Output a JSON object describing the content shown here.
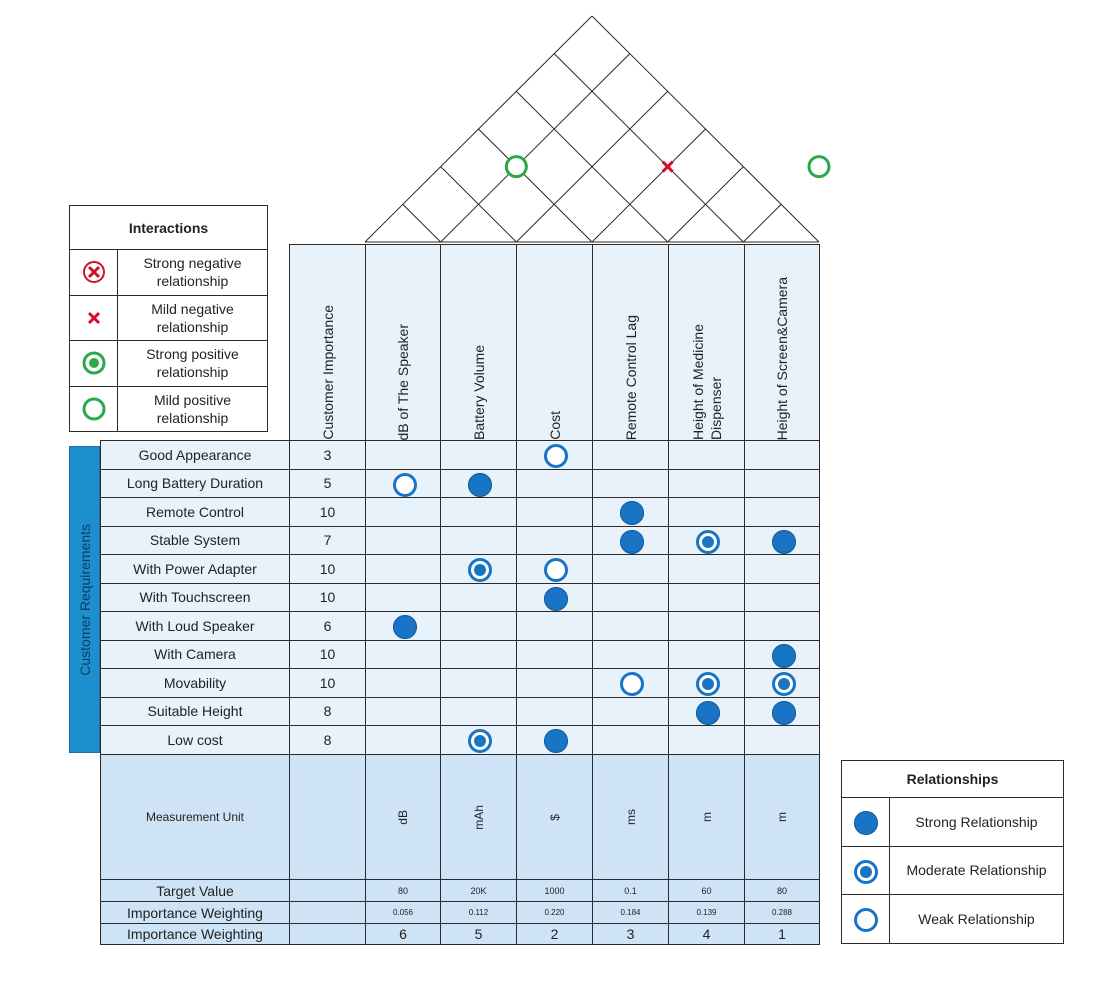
{
  "headers": {
    "customer_importance": "Customer Importance",
    "columns": [
      "dB of The Speaker",
      "Battery Volume",
      "Cost",
      "Remote Control Lag",
      "Height of Medicine\nDispenser",
      "Height of Screen&Camera"
    ]
  },
  "side_label": "Customer Requirements",
  "requirements": [
    {
      "name": "Good Appearance",
      "importance": "3",
      "rel": [
        "",
        "",
        "weak",
        "",
        "",
        ""
      ]
    },
    {
      "name": "Long Battery Duration",
      "importance": "5",
      "rel": [
        "weak",
        "strong",
        "",
        "",
        "",
        ""
      ]
    },
    {
      "name": "Remote Control",
      "importance": "10",
      "rel": [
        "",
        "",
        "",
        "strong",
        "",
        ""
      ]
    },
    {
      "name": "Stable System",
      "importance": "7",
      "rel": [
        "",
        "",
        "",
        "strong",
        "moderate",
        "strong"
      ]
    },
    {
      "name": "With Power Adapter",
      "importance": "10",
      "rel": [
        "",
        "moderate",
        "weak",
        "",
        "",
        ""
      ]
    },
    {
      "name": "With Touchscreen",
      "importance": "10",
      "rel": [
        "",
        "",
        "strong",
        "",
        "",
        ""
      ]
    },
    {
      "name": "With Loud Speaker",
      "importance": "6",
      "rel": [
        "strong",
        "",
        "",
        "",
        "",
        ""
      ]
    },
    {
      "name": "With Camera",
      "importance": "10",
      "rel": [
        "",
        "",
        "",
        "",
        "",
        "strong"
      ]
    },
    {
      "name": "Movability",
      "importance": "10",
      "rel": [
        "",
        "",
        "",
        "weak",
        "moderate",
        "moderate"
      ]
    },
    {
      "name": "Suitable Height",
      "importance": "8",
      "rel": [
        "",
        "",
        "",
        "",
        "strong",
        "strong"
      ]
    },
    {
      "name": "Low cost",
      "importance": "8",
      "rel": [
        "",
        "moderate",
        "strong",
        "",
        "",
        ""
      ]
    }
  ],
  "measurement": {
    "label": "Measurement Unit",
    "units": [
      "dB",
      "mAh",
      "$",
      "ms",
      "m",
      "m"
    ]
  },
  "target": {
    "label": "Target Value",
    "values": [
      "80",
      "20K",
      "1000",
      "0.1",
      "60",
      "80"
    ]
  },
  "weighting": {
    "label": "Importance Weighting",
    "values": [
      "0.056",
      "0.112",
      "0.220",
      "0.184",
      "0.139",
      "0.288"
    ]
  },
  "ranking": {
    "label": "Importance Weighting",
    "values": [
      "6",
      "5",
      "2",
      "3",
      "4",
      "1"
    ]
  },
  "roof_interactions": [
    {
      "pair": [
        1,
        3
      ],
      "type": "strong-positive-ring"
    },
    {
      "pair": [
        3,
        5
      ],
      "type": "mild-negative"
    },
    {
      "pair": [
        5,
        7
      ],
      "type": "strong-positive-ring"
    }
  ],
  "interactions_legend": {
    "title": "Interactions",
    "items": [
      {
        "icon": "strong-negative-icon",
        "label": "Strong negative\nrelationship"
      },
      {
        "icon": "mild-negative-icon",
        "label": "Mild negative\nrelationship"
      },
      {
        "icon": "strong-positive-icon",
        "label": "Strong positive\nrelationship"
      },
      {
        "icon": "mild-positive-icon",
        "label": "Mild positive\nrelationship"
      }
    ]
  },
  "relationships_legend": {
    "title": "Relationships",
    "items": [
      {
        "icon": "strong-relationship-icon",
        "label": "Strong Relationship"
      },
      {
        "icon": "moderate-relationship-icon",
        "label": "Moderate Relationship"
      },
      {
        "icon": "weak-relationship-icon",
        "label": "Weak Relationship"
      }
    ]
  },
  "colors": {
    "accent": "#1a74c4",
    "positive": "#2aa84a",
    "negative": "#d0102a",
    "cell": "#e8f2fb",
    "bottom": "#cfe3f6",
    "side": "#1d8fcf"
  }
}
